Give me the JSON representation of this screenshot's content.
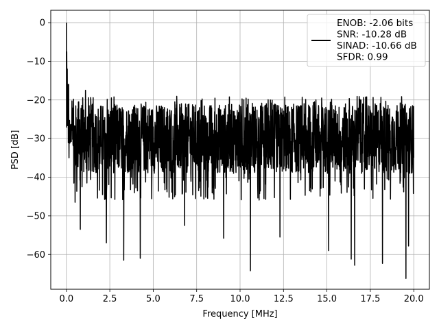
{
  "chart_data": {
    "type": "line",
    "title": "",
    "xlabel": "Frequency [MHz]",
    "ylabel": "PSD [dB]",
    "xlim": [
      -0.9,
      20.9
    ],
    "ylim": [
      -69,
      3.2
    ],
    "xticks": [
      0.0,
      2.5,
      5.0,
      7.5,
      10.0,
      12.5,
      15.0,
      17.5,
      20.0
    ],
    "xtick_labels": [
      "0.0",
      "2.5",
      "5.0",
      "7.5",
      "10.0",
      "12.5",
      "15.0",
      "17.5",
      "20.0"
    ],
    "yticks": [
      0,
      -10,
      -20,
      -30,
      -40,
      -50,
      -60
    ],
    "ytick_labels": [
      "0",
      "−10",
      "−20",
      "−30",
      "−40",
      "−50",
      "−60"
    ],
    "grid": true,
    "legend_position": "top-right",
    "series_color": "#000000",
    "legend": {
      "lines": [
        "ENOB: -2.06 bits",
        "SNR: -10.28 dB",
        "SINAD: -10.66 dB",
        "SFDR: 0.99"
      ]
    },
    "series": [
      {
        "x_range": [
          0.0,
          20.0
        ],
        "points": 2000,
        "baseline": -30,
        "typical_band": [
          -40,
          -21
        ],
        "peak": {
          "x": 0.0,
          "y": 0.0
        },
        "notable_points": [
          {
            "x": 0.02,
            "y": -7.5
          },
          {
            "x": 0.05,
            "y": -12
          },
          {
            "x": 0.1,
            "y": -16
          },
          {
            "x": 0.15,
            "y": -35
          },
          {
            "x": 0.5,
            "y": -46.5
          },
          {
            "x": 0.8,
            "y": -53.5
          },
          {
            "x": 1.1,
            "y": -17.5
          },
          {
            "x": 2.3,
            "y": -57
          },
          {
            "x": 3.3,
            "y": -61.5
          },
          {
            "x": 4.25,
            "y": -61
          },
          {
            "x": 6.8,
            "y": -52.5
          },
          {
            "x": 9.05,
            "y": -55.8
          },
          {
            "x": 10.6,
            "y": -64.2
          },
          {
            "x": 12.3,
            "y": -55.5
          },
          {
            "x": 15.1,
            "y": -59
          },
          {
            "x": 16.4,
            "y": -61.2
          },
          {
            "x": 16.6,
            "y": -62.8
          },
          {
            "x": 18.2,
            "y": -62.3
          },
          {
            "x": 19.55,
            "y": -66.2
          },
          {
            "x": 19.7,
            "y": -57.8
          }
        ]
      }
    ]
  }
}
